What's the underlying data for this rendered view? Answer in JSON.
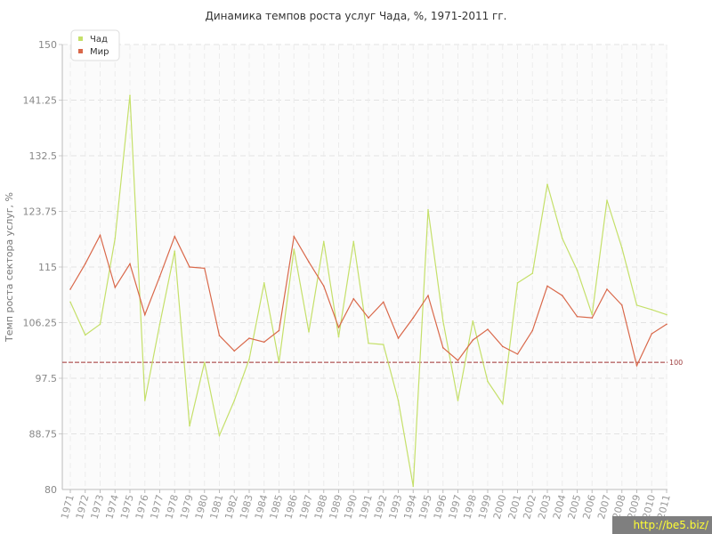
{
  "chart_data": {
    "type": "line",
    "title": "Динамика темпов роста услуг Чада, %, 1971-2011 гг.",
    "ylabel": "Темп роста сектора услуг, %",
    "xlabel": "",
    "ylim": [
      80,
      150
    ],
    "yticks": [
      "80",
      "88.75",
      "97.5",
      "106.25",
      "115",
      "123.75",
      "132.5",
      "141.25",
      "150"
    ],
    "x": [
      "1971",
      "1972",
      "1973",
      "1974",
      "1975",
      "1976",
      "1977",
      "1978",
      "1979",
      "1980",
      "1981",
      "1982",
      "1983",
      "1984",
      "1985",
      "1986",
      "1987",
      "1988",
      "1989",
      "1990",
      "1991",
      "1992",
      "1993",
      "1994",
      "1995",
      "1996",
      "1997",
      "1998",
      "1999",
      "2000",
      "2001",
      "2002",
      "2003",
      "2004",
      "2005",
      "2006",
      "2007",
      "2008",
      "2009",
      "2010",
      "2011"
    ],
    "series": [
      {
        "name": "Чад",
        "color": "#c5e06a",
        "values": [
          109.5,
          104.3,
          106,
          119.5,
          142,
          94,
          106,
          117.5,
          90,
          100,
          88.5,
          94,
          100.5,
          112.5,
          100,
          117.8,
          104.8,
          119,
          104,
          119,
          103,
          102.8,
          94,
          80.5,
          124,
          106.5,
          94,
          106.5,
          97,
          93.5,
          112.5,
          114,
          128,
          119.5,
          114.5,
          107.5,
          125.5,
          118,
          109,
          108.3,
          107.5
        ]
      },
      {
        "name": "Мир",
        "color": "#d9684a",
        "values": [
          111.5,
          115.5,
          120,
          111.8,
          115.5,
          107.5,
          113.5,
          119.8,
          115,
          114.8,
          104.2,
          101.8,
          103.8,
          103.2,
          105,
          119.8,
          115.8,
          112,
          105.5,
          110,
          107,
          109.5,
          103.8,
          107,
          110.5,
          102.3,
          100.3,
          103.5,
          105.2,
          102.5,
          101.3,
          105,
          112,
          110.5,
          107.2,
          107,
          111.5,
          109,
          99.5,
          104.5,
          106
        ]
      }
    ],
    "reference_line": {
      "value": 100,
      "label": "100",
      "color": "#a03030"
    },
    "grid": true,
    "legend": "top-left"
  },
  "watermark": "http://be5.biz/"
}
